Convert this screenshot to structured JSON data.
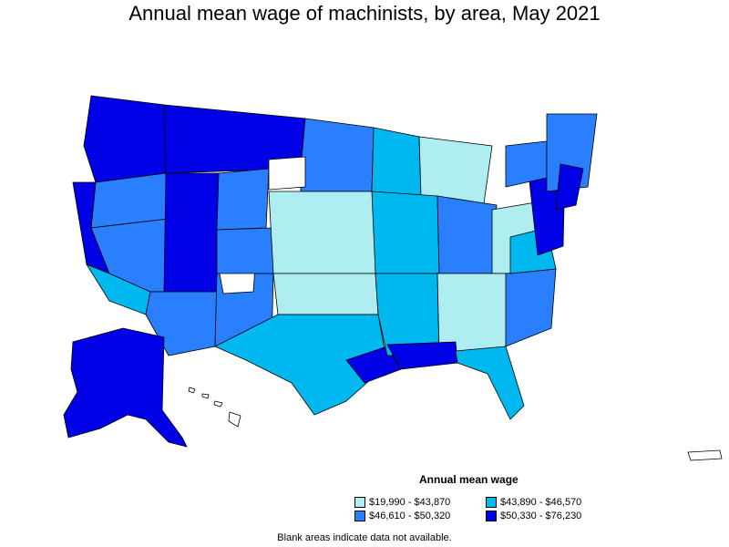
{
  "title": "Annual mean wage of machinists, by area, May 2021",
  "legend": {
    "title": "Annual mean wage",
    "items": [
      {
        "label": "$19,990 - $43,870",
        "color": "#aeeef0"
      },
      {
        "label": "$43,890 - $46,570",
        "color": "#00b8f0"
      },
      {
        "label": "$46,610 - $50,320",
        "color": "#2a7fff"
      },
      {
        "label": "$50,330 - $76,230",
        "color": "#0000e6"
      }
    ]
  },
  "footnote": "Blank areas indicate data not available.",
  "colors": {
    "border": "#000000",
    "no_data": "#ffffff"
  }
}
